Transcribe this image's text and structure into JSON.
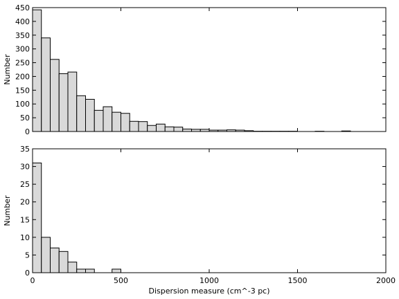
{
  "chart_data": [
    {
      "type": "bar",
      "histogram": true,
      "bin_width": 50,
      "bin_starts": [
        0,
        50,
        100,
        150,
        200,
        250,
        300,
        350,
        400,
        450,
        500,
        550,
        600,
        650,
        700,
        750,
        800,
        850,
        900,
        950,
        1000,
        1050,
        1100,
        1150,
        1200,
        1250,
        1300,
        1350,
        1400,
        1450,
        1500,
        1550,
        1600,
        1650,
        1700,
        1750,
        1800
      ],
      "values": [
        442,
        340,
        262,
        210,
        216,
        130,
        117,
        77,
        90,
        70,
        66,
        37,
        36,
        22,
        27,
        17,
        16,
        9,
        8,
        8,
        5,
        5,
        6,
        5,
        3,
        1,
        1,
        1,
        1,
        1,
        0,
        0,
        1,
        0,
        0,
        2,
        0
      ],
      "xlabel": "",
      "ylabel": "Number",
      "xlim": [
        0,
        2000
      ],
      "ylim": [
        0,
        450
      ],
      "xticks": [],
      "yticks": [
        0,
        50,
        100,
        150,
        200,
        250,
        300,
        350,
        400,
        450
      ],
      "grid": false
    },
    {
      "type": "bar",
      "histogram": true,
      "bin_width": 50,
      "bin_starts": [
        0,
        50,
        100,
        150,
        200,
        250,
        300,
        350,
        400,
        450
      ],
      "values": [
        31,
        10,
        7,
        6,
        3,
        1,
        1,
        0,
        0,
        1
      ],
      "xlabel": "Dispersion measure (cm^-3 pc)",
      "ylabel": "Number",
      "xlim": [
        0,
        2000
      ],
      "ylim": [
        0,
        35
      ],
      "xticks": [
        0,
        500,
        1000,
        1500,
        2000
      ],
      "yticks": [
        0,
        5,
        10,
        15,
        20,
        25,
        30,
        35
      ],
      "grid": false
    }
  ]
}
